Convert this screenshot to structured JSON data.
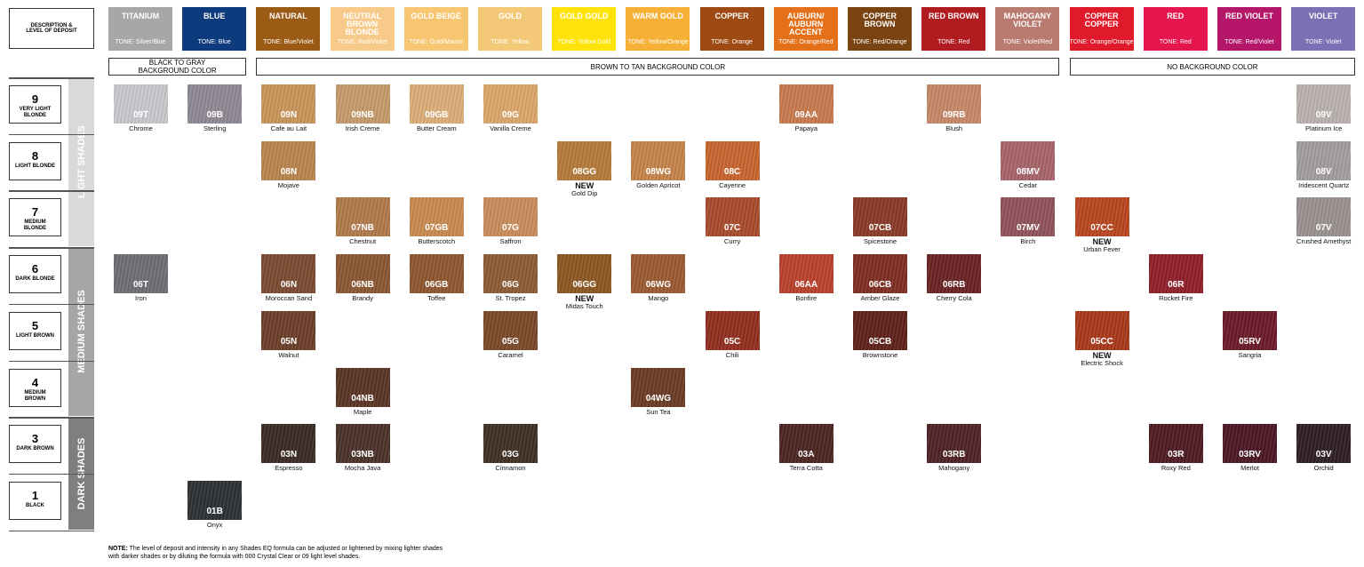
{
  "description": "DESCRIPTION & LEVEL OF DEPOSIT",
  "tones": [
    {
      "name": "TITANIUM",
      "tone": "TONE: Silver/Blue",
      "color": "#a7a7a9"
    },
    {
      "name": "BLUE",
      "tone": "TONE: Blue",
      "color": "#0e3a7e"
    },
    {
      "name": "NATURAL",
      "tone": "TONE: Blue/Violet",
      "color": "#9c5b14"
    },
    {
      "name": "NEUTRAL BROWN BLONDE",
      "tone": "TONE: Red/Violet",
      "color": "#f8ca8a"
    },
    {
      "name": "GOLD BEIGE",
      "tone": "TONE: Gold/Mauve",
      "color": "#f6c670"
    },
    {
      "name": "GOLD",
      "tone": "TONE: Yellow",
      "color": "#f3c978"
    },
    {
      "name": "GOLD GOLD",
      "tone": "TONE: Yellow Gold",
      "color": "#fde30a"
    },
    {
      "name": "WARM GOLD",
      "tone": "TONE: Yellow/Orange",
      "color": "#f5b035"
    },
    {
      "name": "COPPER",
      "tone": "TONE: Orange",
      "color": "#9e4a12"
    },
    {
      "name": "AUBURN/ AUBURN ACCENT",
      "tone": "TONE: Orange/Red",
      "color": "#e4711a"
    },
    {
      "name": "COPPER BROWN",
      "tone": "TONE: Red/Orange",
      "color": "#7a4412"
    },
    {
      "name": "RED BROWN",
      "tone": "TONE: Red",
      "color": "#b01c20"
    },
    {
      "name": "MAHOGANY VIOLET",
      "tone": "TONE: Violet/Red",
      "color": "#b97a70"
    },
    {
      "name": "COPPER COPPER",
      "tone": "TONE: Orange/Orange",
      "color": "#e01a2a"
    },
    {
      "name": "RED",
      "tone": "TONE: Red",
      "color": "#e5154e"
    },
    {
      "name": "RED VIOLET",
      "tone": "TONE: Red/Violet",
      "color": "#b5166a"
    },
    {
      "name": "VIOLET",
      "tone": "TONE: Violet",
      "color": "#7b70b3"
    }
  ],
  "backgrounds": [
    "BLACK TO GRAY BACKGROUND COLOR",
    "BROWN TO TAN BACKGROUND COLOR",
    "NO BACKGROUND COLOR"
  ],
  "bands": [
    "LIGHT SHADES",
    "MEDIUM SHADES",
    "DARK SHADES"
  ],
  "rows": [
    {
      "level": "9",
      "label": "VERY LIGHT BLONDE",
      "cells": [
        {
          "code": "09T",
          "name": "Chrome",
          "color": "#c8c8cc"
        },
        {
          "code": "09B",
          "name": "Sterling",
          "color": "#8e8893"
        },
        {
          "code": "09N",
          "name": "Cafe au Lait",
          "color": "#c9955a"
        },
        {
          "code": "09NB",
          "name": "Irish Creme",
          "color": "#c49a6a"
        },
        {
          "code": "09GB",
          "name": "Butter Cream",
          "color": "#dcad78"
        },
        {
          "code": "09G",
          "name": "Vanilla Creme",
          "color": "#dba66a"
        },
        null,
        null,
        null,
        {
          "code": "09AA",
          "name": "Papaya",
          "color": "#c87a4e"
        },
        null,
        {
          "code": "09RB",
          "name": "Blush",
          "color": "#c68868"
        },
        null,
        null,
        null,
        null,
        {
          "code": "09V",
          "name": "Platinum Ice",
          "color": "#b9b1ae"
        }
      ]
    },
    {
      "level": "8",
      "label": "LIGHT BLONDE",
      "cells": [
        null,
        null,
        {
          "code": "08N",
          "name": "Mojave",
          "color": "#b8844c"
        },
        null,
        null,
        null,
        {
          "code": "08GG",
          "badge": "NEW",
          "name": "Gold Dip",
          "color": "#b47a3a"
        },
        {
          "code": "08WG",
          "name": "Golden Apricot",
          "color": "#c4834a"
        },
        {
          "code": "08C",
          "name": "Cayenne",
          "color": "#c7642e"
        },
        null,
        null,
        null,
        {
          "code": "08MV",
          "name": "Cedar",
          "color": "#a66468"
        },
        null,
        null,
        null,
        {
          "code": "08V",
          "name": "Iridescent Quartz",
          "color": "#a29d9e"
        }
      ]
    },
    {
      "level": "7",
      "label": "MEDIUM BLONDE",
      "cells": [
        null,
        null,
        null,
        {
          "code": "07NB",
          "name": "Chestnut",
          "color": "#b07a4a"
        },
        {
          "code": "07GB",
          "name": "Butterscotch",
          "color": "#c98a4e"
        },
        {
          "code": "07G",
          "name": "Saffron",
          "color": "#c98c5a"
        },
        null,
        null,
        {
          "code": "07C",
          "name": "Curry",
          "color": "#a84a2c"
        },
        null,
        {
          "code": "07CB",
          "name": "Spicestone",
          "color": "#8a3a26"
        },
        null,
        {
          "code": "07MV",
          "name": "Birch",
          "color": "#8f525a"
        },
        {
          "code": "07CC",
          "badge": "NEW",
          "name": "Urban Fever",
          "color": "#b8471f"
        },
        null,
        null,
        {
          "code": "07V",
          "name": "Crushed Amethyst",
          "color": "#9a9090"
        }
      ]
    },
    {
      "level": "6",
      "label": "DARK BLONDE",
      "cells": [
        {
          "code": "06T",
          "name": "Iron",
          "color": "#6e6d73"
        },
        null,
        {
          "code": "06N",
          "name": "Moroccan Sand",
          "color": "#7a4a30"
        },
        {
          "code": "06NB",
          "name": "Brandy",
          "color": "#8a5632"
        },
        {
          "code": "06GB",
          "name": "Toffee",
          "color": "#8e552e"
        },
        {
          "code": "06G",
          "name": "St. Tropez",
          "color": "#8c5a34"
        },
        {
          "code": "06GG",
          "badge": "NEW",
          "name": "Midas Touch",
          "color": "#8a5620"
        },
        {
          "code": "06WG",
          "name": "Mango",
          "color": "#9a5a30"
        },
        null,
        {
          "code": "06AA",
          "name": "Bonfire",
          "color": "#b8402a"
        },
        {
          "code": "06CB",
          "name": "Amber Glaze",
          "color": "#7e2e22"
        },
        {
          "code": "06RB",
          "name": "Cherry Cola",
          "color": "#6a2222"
        },
        null,
        null,
        {
          "code": "06R",
          "name": "Rocket Fire",
          "color": "#8e1e28"
        },
        null,
        null
      ]
    },
    {
      "level": "5",
      "label": "LIGHT BROWN",
      "cells": [
        null,
        null,
        {
          "code": "05N",
          "name": "Walnut",
          "color": "#6a3e28"
        },
        null,
        null,
        {
          "code": "05G",
          "name": "Caramel",
          "color": "#7a4828"
        },
        null,
        null,
        {
          "code": "05C",
          "name": "Chili",
          "color": "#902e1e"
        },
        null,
        {
          "code": "05CB",
          "name": "Brownstone",
          "color": "#5e2018"
        },
        null,
        null,
        {
          "code": "05CC",
          "badge": "NEW",
          "name": "Electric Shock",
          "color": "#a8381a"
        },
        null,
        {
          "code": "05RV",
          "name": "Sangria",
          "color": "#6a1a28"
        },
        null
      ]
    },
    {
      "level": "4",
      "label": "MEDIUM BROWN",
      "cells": [
        null,
        null,
        null,
        {
          "code": "04NB",
          "name": "Maple",
          "color": "#5a3424"
        },
        null,
        null,
        null,
        {
          "code": "04WG",
          "name": "Sun Tea",
          "color": "#6a3a24"
        },
        null,
        null,
        null,
        null,
        null,
        null,
        null,
        null,
        null
      ]
    },
    {
      "level": "3",
      "label": "DARK BROWN",
      "cells": [
        null,
        null,
        {
          "code": "03N",
          "name": "Espresso",
          "color": "#3a2a22"
        },
        {
          "code": "03NB",
          "name": "Mocha Java",
          "color": "#4a3228"
        },
        null,
        {
          "code": "03G",
          "name": "Cinnamon",
          "color": "#3e3022"
        },
        null,
        null,
        null,
        {
          "code": "03A",
          "name": "Terra Cotta",
          "color": "#4a2420"
        },
        null,
        {
          "code": "03RB",
          "name": "Mahogany",
          "color": "#4e2224"
        },
        null,
        null,
        {
          "code": "03R",
          "name": "Roxy Red",
          "color": "#4e1a22"
        },
        {
          "code": "03RV",
          "name": "Merlot",
          "color": "#4a1624"
        },
        {
          "code": "03V",
          "name": "Orchid",
          "color": "#2e1e24"
        }
      ]
    },
    {
      "level": "1",
      "label": "BLACK",
      "cells": [
        null,
        {
          "code": "01B",
          "name": "Onyx",
          "color": "#2c3032"
        },
        null,
        null,
        null,
        null,
        null,
        null,
        null,
        null,
        null,
        null,
        null,
        null,
        null,
        null,
        null
      ]
    }
  ],
  "note_label": "NOTE:",
  "note": "The level of deposit and intensity in any Shades EQ formula can be adjusted or lightened by mixing lighter shades with darker shades or by diluting the formula with 000 Crystal Clear or 09 light level shades."
}
